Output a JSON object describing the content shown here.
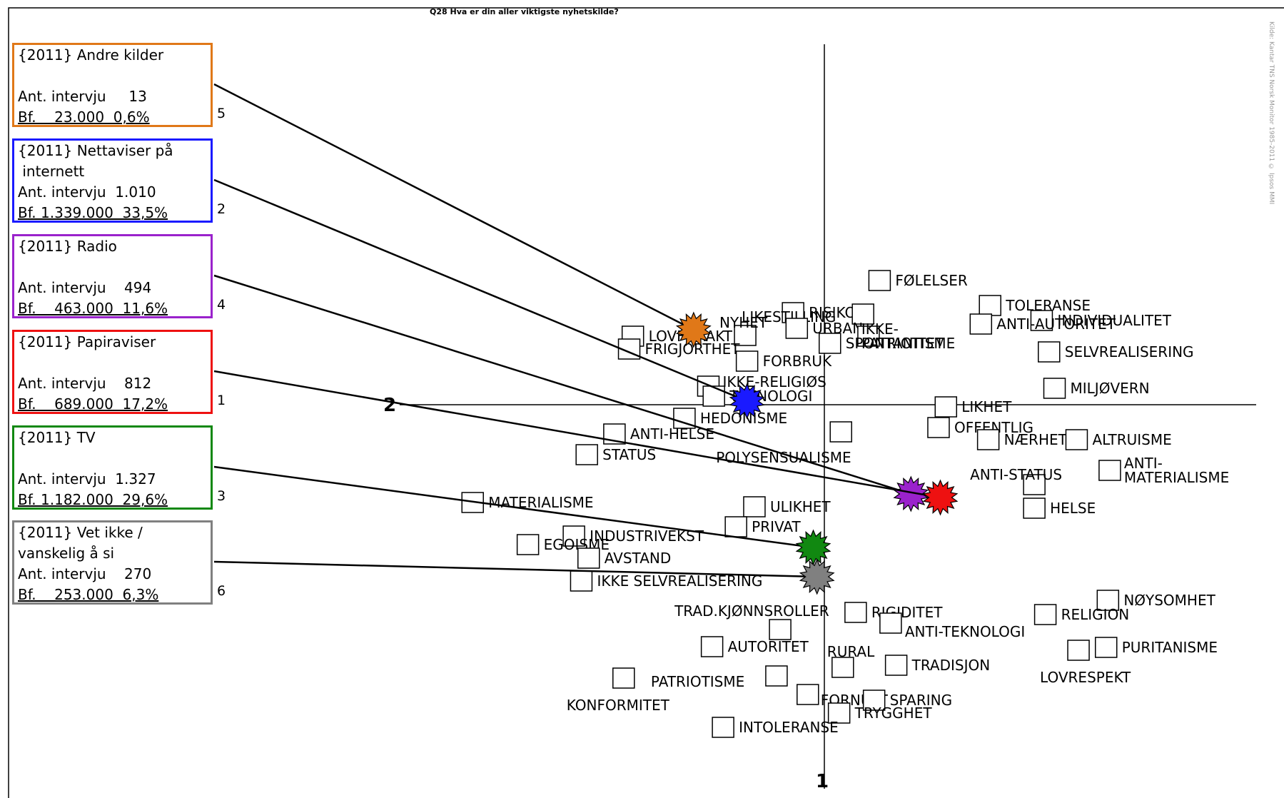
{
  "chart_data": {
    "type": "scatter",
    "title": "Q28 Hva er din aller viktigste nyhetskilde?",
    "side_note": "Kilde: Kantar TNS Norsk Monitor 1985-2011 © Ipsos MMI",
    "axes": {
      "vertical": "1",
      "horizontal": "2"
    },
    "colors": {
      "marker_border": "#000000",
      "axis": "#000000",
      "connector": "#000000"
    },
    "values": [
      {
        "label": "FØLELSER",
        "x": 0.3,
        "y": 1.73
      },
      {
        "label": "TOLERANSE",
        "x": 0.9,
        "y": 1.38
      },
      {
        "label": "INDIVIDUALITET",
        "x": 1.18,
        "y": 1.17
      },
      {
        "label": "RISIKO",
        "x": -0.17,
        "y": 1.28
      },
      {
        "label": "LIKESTILLING",
        "x": 0.21,
        "y": 1.26
      },
      {
        "label": "URBAN",
        "x": -0.15,
        "y": 1.06
      },
      {
        "label": "IKKE-PATRIOTISME",
        "x": 0.24,
        "y": 0.95
      },
      {
        "label": "ANTI-AUTORITET",
        "x": 0.85,
        "y": 1.12
      },
      {
        "label": "SELVREALISERING",
        "x": 1.22,
        "y": 0.73
      },
      {
        "label": "LOVFORAKT",
        "x": -1.04,
        "y": 0.95
      },
      {
        "label": "NYHET",
        "x": -0.43,
        "y": 0.96
      },
      {
        "label": "SPONTANITET",
        "x": 0.03,
        "y": 0.85
      },
      {
        "label": "FRIGJORTHET",
        "x": -1.06,
        "y": 0.77
      },
      {
        "label": "FORBRUK",
        "x": -0.42,
        "y": 0.6
      },
      {
        "label": "IKKE-RELIGIØS",
        "x": -0.63,
        "y": 0.25
      },
      {
        "label": "TEKNOLOGI",
        "x": -0.6,
        "y": 0.11
      },
      {
        "label": "MILJØVERN",
        "x": 1.25,
        "y": 0.22
      },
      {
        "label": "LIKHET",
        "x": 0.66,
        "y": -0.04
      },
      {
        "label": "HEDONISME",
        "x": -0.76,
        "y": -0.2
      },
      {
        "label": "POLYSENSUALISME",
        "x": 0.09,
        "y": -0.39
      },
      {
        "label": "OFFENTLIG",
        "x": 0.62,
        "y": -0.33
      },
      {
        "label": "ANTI-HELSE",
        "x": -1.14,
        "y": -0.42
      },
      {
        "label": "NÆRHET",
        "x": 0.89,
        "y": -0.5
      },
      {
        "label": "ALTRUISME",
        "x": 1.37,
        "y": -0.5
      },
      {
        "label": "STATUS",
        "x": -1.29,
        "y": -0.71
      },
      {
        "label": "ANTI-STATUS",
        "x": 1.14,
        "y": -1.13
      },
      {
        "label": "ANTI-MATERIALISME",
        "x": 1.55,
        "y": -0.93
      },
      {
        "label": "MATERIALISME",
        "x": -1.91,
        "y": -1.38
      },
      {
        "label": "ULIKHET",
        "x": -0.38,
        "y": -1.44
      },
      {
        "label": "HELSE",
        "x": 1.14,
        "y": -1.46
      },
      {
        "label": "PRIVAT",
        "x": -0.48,
        "y": -1.72
      },
      {
        "label": "INDUSTRIVEKST",
        "x": -1.36,
        "y": -1.85
      },
      {
        "label": "EGOISME",
        "x": -1.61,
        "y": -1.97
      },
      {
        "label": "AVSTAND",
        "x": -1.28,
        "y": -2.16
      },
      {
        "label": "IKKE SELVREALISERING",
        "x": -1.32,
        "y": -2.48
      },
      {
        "label": "NØYSOMHET",
        "x": 1.54,
        "y": -2.75
      },
      {
        "label": "RIGIDITET",
        "x": 0.17,
        "y": -2.92
      },
      {
        "label": "RELIGION",
        "x": 1.2,
        "y": -2.95
      },
      {
        "label": "TRAD.KJØNNSROLLER",
        "x": -0.24,
        "y": -3.16
      },
      {
        "label": "ANTI-TEKNOLOGI",
        "x": 0.36,
        "y": -3.07
      },
      {
        "label": "AUTORITET",
        "x": -0.61,
        "y": -3.4
      },
      {
        "label": "PURITANISME",
        "x": 1.53,
        "y": -3.41
      },
      {
        "label": "LOVRESPEKT",
        "x": 1.38,
        "y": -3.45
      },
      {
        "label": "RURAL",
        "x": 0.1,
        "y": -3.69
      },
      {
        "label": "TRADISJON",
        "x": 0.39,
        "y": -3.66
      },
      {
        "label": "KONFORMITET",
        "x": -1.09,
        "y": -3.84
      },
      {
        "label": "PATRIOTISME",
        "x": -0.26,
        "y": -3.81
      },
      {
        "label": "FORNUFT",
        "x": -0.09,
        "y": -4.07
      },
      {
        "label": "SPARING",
        "x": 0.27,
        "y": -4.15
      },
      {
        "label": "TRYGGHET",
        "x": 0.08,
        "y": -4.33
      },
      {
        "label": "INTOLERANSE",
        "x": -0.55,
        "y": -4.53
      }
    ],
    "series": [
      {
        "name": "{2011} Andre kilder",
        "n": "5",
        "lines": [
          "{2011} Andre kilder",
          "",
          "Ant. intervju     13",
          "Bf.    23.000  0,6%"
        ],
        "x": -0.71,
        "y": 1.05,
        "color": "#e07818"
      },
      {
        "name": "{2011} Nettaviser på internett",
        "n": "2",
        "lines": [
          "{2011} Nettaviser på",
          " internett",
          "Ant. intervju  1.010",
          "Bf. 1.339.000  33,5%"
        ],
        "x": -0.42,
        "y": 0.05,
        "color": "#1a1aff"
      },
      {
        "name": "{2011} Radio",
        "n": "4",
        "lines": [
          "{2011} Radio",
          "",
          "Ant. intervju    494",
          "Bf.    463.000  11,6%"
        ],
        "x": 0.47,
        "y": -1.25,
        "color": "#9a22cc"
      },
      {
        "name": "{2011} Papiraviser",
        "n": "1",
        "lines": [
          "{2011} Papiraviser",
          "",
          "Ant. intervju    812",
          "Bf.    689.000  17,2%"
        ],
        "x": 0.63,
        "y": -1.3,
        "color": "#ee1111"
      },
      {
        "name": "{2011} TV",
        "n": "3",
        "lines": [
          "{2011} TV",
          "",
          "Ant. intervju  1.327",
          "Bf. 1.182.000  29,6%"
        ],
        "x": -0.06,
        "y": -2.0,
        "color": "#118811"
      },
      {
        "name": "{2011} Vet ikke / vanskelig å si",
        "n": "6",
        "lines": [
          "{2011} Vet ikke /",
          "vanskelig å si",
          "Ant. intervju    270",
          "Bf.    253.000  6,3%"
        ],
        "x": -0.04,
        "y": -2.41,
        "color": "#808080"
      }
    ]
  }
}
